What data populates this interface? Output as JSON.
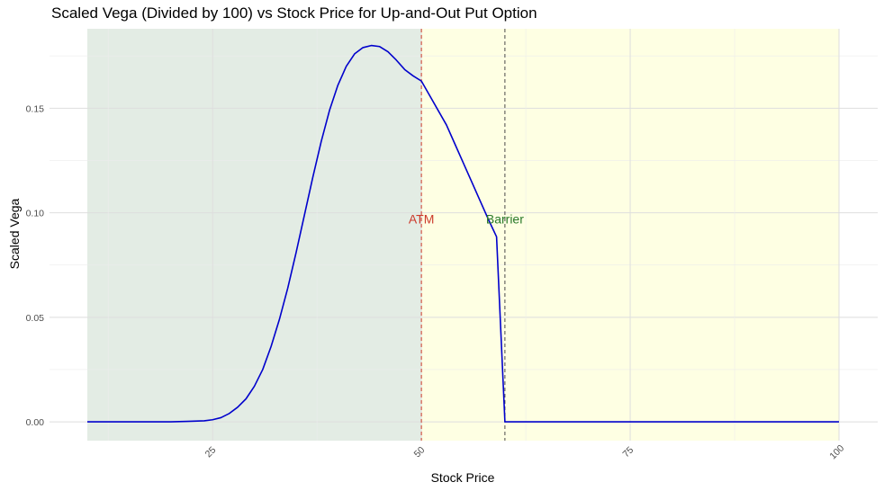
{
  "chart_data": {
    "type": "line",
    "title": "Scaled Vega (Divided by 100) vs Stock Price for Up-and-Out Put Option",
    "xlabel": "Stock Price",
    "ylabel": "Scaled Vega",
    "xlim": [
      10,
      100
    ],
    "ylim": [
      -0.009,
      0.188
    ],
    "x_ticks": [
      25,
      50,
      75,
      100
    ],
    "y_ticks": [
      0.0,
      0.05,
      0.1,
      0.15
    ],
    "x_tick_labels": [
      "25",
      "50",
      "75",
      "100"
    ],
    "y_tick_labels": [
      "0.00",
      "0.05",
      "0.10",
      "0.15"
    ],
    "x_tick_label_rotation_deg": -45,
    "grid": true,
    "legend": "none",
    "regions": [
      {
        "x_range": [
          10,
          50
        ],
        "color": "#e3ece4"
      },
      {
        "x_range": [
          50,
          100
        ],
        "color": "#feffe3"
      }
    ],
    "vlines": [
      {
        "x": 50,
        "label": "ATM",
        "color": "#cc3a2b",
        "label_y": 0.097
      },
      {
        "x": 60,
        "label": "Barrier",
        "color": "#2a7a2a",
        "line_color": "#4a4a4a",
        "label_y": 0.097
      }
    ],
    "series": [
      {
        "color": "#0000cc",
        "x": [
          10,
          12,
          14,
          16,
          18,
          20,
          22,
          24,
          25,
          26,
          27,
          28,
          29,
          30,
          31,
          32,
          33,
          34,
          35,
          36,
          37,
          38,
          39,
          40,
          41,
          42,
          43,
          44,
          45,
          46,
          47,
          48,
          49,
          50,
          51,
          52,
          53,
          54,
          55,
          56,
          57,
          58,
          59,
          60,
          62,
          65,
          70,
          75,
          80,
          85,
          90,
          95,
          100
        ],
        "y": [
          0,
          0,
          0,
          0,
          0,
          0,
          0.0002,
          0.0005,
          0.001,
          0.002,
          0.004,
          0.007,
          0.011,
          0.017,
          0.025,
          0.036,
          0.049,
          0.064,
          0.081,
          0.099,
          0.117,
          0.134,
          0.149,
          0.161,
          0.17,
          0.176,
          0.179,
          0.18,
          0.1795,
          0.177,
          0.173,
          0.1685,
          0.1655,
          0.163,
          0.156,
          0.149,
          0.142,
          0.133,
          0.124,
          0.115,
          0.106,
          0.097,
          0.0885,
          0,
          0,
          0,
          0,
          0,
          0,
          0,
          0,
          0,
          0
        ]
      }
    ]
  }
}
